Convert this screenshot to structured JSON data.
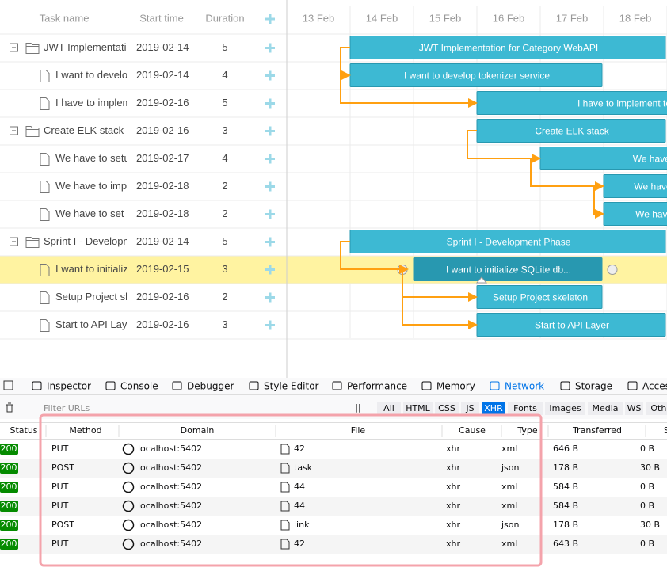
{
  "gantt": {
    "columns": [
      "Task name",
      "Start time",
      "Duration"
    ],
    "dates": [
      "13 Feb",
      "14 Feb",
      "15 Feb",
      "16 Feb",
      "17 Feb",
      "18 Feb"
    ],
    "rows": [
      {
        "type": "project",
        "name": "JWT Implementation for Category WebAPI",
        "start": "2019-02-14",
        "duration": 5
      },
      {
        "type": "task",
        "name": "I want to develop tokenizer service",
        "start": "2019-02-14",
        "duration": 4
      },
      {
        "type": "task",
        "name": "I have to implement tokeniz",
        "start": "2019-02-16",
        "duration": 5
      },
      {
        "type": "project",
        "name": "Create ELK stack",
        "start": "2019-02-16",
        "duration": 3
      },
      {
        "type": "task",
        "name": "We have to setu",
        "start": "2019-02-17",
        "duration": 4
      },
      {
        "type": "task",
        "name": "We have to imp",
        "start": "2019-02-18",
        "duration": 2
      },
      {
        "type": "task",
        "name": "We have to set",
        "start": "2019-02-18",
        "duration": 2
      },
      {
        "type": "project",
        "name": "Sprint I - Development Phase",
        "start": "2019-02-14",
        "duration": 5
      },
      {
        "type": "task",
        "name": "I want to initialize SQLite db...",
        "start": "2019-02-15",
        "duration": 3,
        "selected": true
      },
      {
        "type": "task",
        "name": "Setup Project skeleton",
        "start": "2019-02-16",
        "duration": 2
      },
      {
        "type": "task",
        "name": "Start to API Layer",
        "start": "2019-02-16",
        "duration": 3
      }
    ]
  },
  "devtools": {
    "tabs": [
      {
        "label": "Inspector"
      },
      {
        "label": "Console"
      },
      {
        "label": "Debugger"
      },
      {
        "label": "Style Editor"
      },
      {
        "label": "Performance"
      },
      {
        "label": "Memory"
      },
      {
        "label": "Network",
        "selected": true
      },
      {
        "label": "Storage"
      },
      {
        "label": "Accessibility"
      }
    ],
    "filter_placeholder": "Filter URLs",
    "pause": "||",
    "filters": [
      {
        "label": "All"
      },
      {
        "label": "HTML"
      },
      {
        "label": "CSS"
      },
      {
        "label": "JS"
      },
      {
        "label": "XHR",
        "selected": true
      },
      {
        "label": "Fonts"
      },
      {
        "label": "Images"
      },
      {
        "label": "Media"
      },
      {
        "label": "WS"
      },
      {
        "label": "Other"
      }
    ],
    "table": {
      "headers": [
        "Status",
        "Method",
        "Domain",
        "File",
        "Cause",
        "Type",
        "Transferred",
        "Size"
      ],
      "rows": [
        [
          "200",
          "PUT",
          "localhost:5402",
          "42",
          "xhr",
          "xml",
          "646 B",
          "0 B"
        ],
        [
          "200",
          "POST",
          "localhost:5402",
          "task",
          "xhr",
          "json",
          "178 B",
          "30 B"
        ],
        [
          "200",
          "PUT",
          "localhost:5402",
          "44",
          "xhr",
          "xml",
          "584 B",
          "0 B"
        ],
        [
          "200",
          "PUT",
          "localhost:5402",
          "44",
          "xhr",
          "xml",
          "584 B",
          "0 B"
        ],
        [
          "200",
          "POST",
          "localhost:5402",
          "link",
          "xhr",
          "json",
          "178 B",
          "30 B"
        ],
        [
          "200",
          "PUT",
          "localhost:5402",
          "42",
          "xhr",
          "xml",
          "643 B",
          "0 B"
        ]
      ]
    }
  }
}
